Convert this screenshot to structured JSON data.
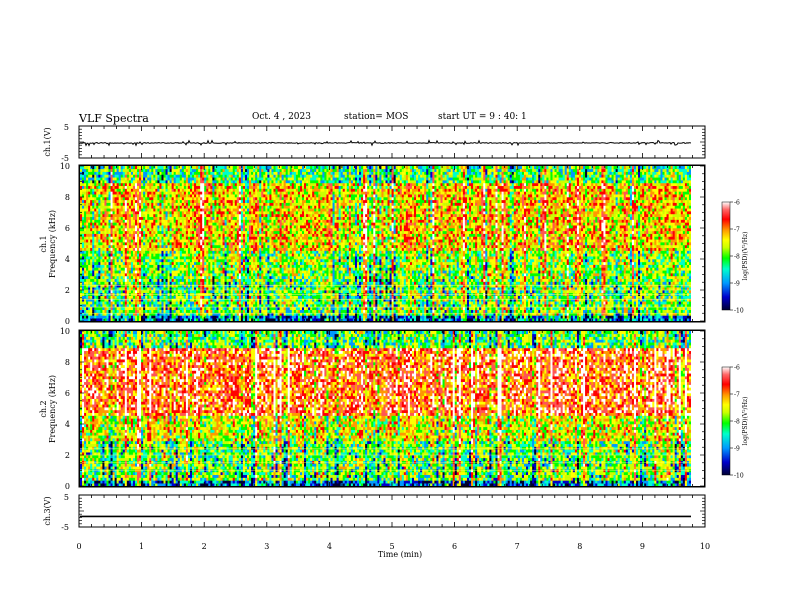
{
  "header": {
    "title": "VLF Spectra",
    "date": "Oct. 4 , 2023",
    "station": "station= MOS",
    "start_ut": "start UT = 9 : 40: 1"
  },
  "chart_data": [
    {
      "id": "ch1-waveform",
      "type": "line",
      "ylabel": "ch.1(V)",
      "ylim": [
        -5,
        5
      ],
      "yticks": [
        "5",
        "-5"
      ],
      "xlim": [
        0,
        10
      ],
      "baseline_value": -0.3,
      "color": "#000000"
    },
    {
      "id": "ch1-spectrogram",
      "type": "heatmap",
      "ylabel": "ch.1\nFrequency (kHz)",
      "ylim": [
        0,
        10
      ],
      "yticks": [
        "0",
        "2",
        "4",
        "6",
        "8",
        "10"
      ],
      "xlim": [
        0,
        9.85
      ],
      "colorbar": {
        "label": "log(PSD)(V²/Hz)",
        "range": [
          -10,
          -6
        ],
        "ticks": [
          "-6",
          "-7",
          "-8",
          "-9",
          "-10"
        ]
      },
      "banded_lines_khz": [
        0.5,
        0.9,
        1.4,
        1.7,
        2.0,
        2.3
      ]
    },
    {
      "id": "ch2-spectrogram",
      "type": "heatmap",
      "ylabel": "ch.2\nFrequency (kHz)",
      "ylim": [
        0,
        10
      ],
      "yticks": [
        "0",
        "2",
        "4",
        "6",
        "8",
        "10"
      ],
      "xlim": [
        0,
        9.85
      ],
      "colorbar": {
        "label": "log(PSD)(V²/Hz)",
        "range": [
          -10,
          -6
        ],
        "ticks": [
          "-6",
          "-7",
          "-8",
          "-9",
          "-10"
        ]
      },
      "banded_lines_khz": [
        1.0,
        1.5,
        2.0,
        2.4
      ]
    },
    {
      "id": "ch3-waveform",
      "type": "line",
      "ylabel": "ch.3(V)",
      "ylim": [
        -5,
        5
      ],
      "yticks": [
        "5",
        "-5"
      ],
      "xlim": [
        0,
        10
      ],
      "baseline_value": -1.7,
      "color": "#000000"
    }
  ],
  "x_axis": {
    "label": "Time (min)",
    "range": [
      0,
      10
    ],
    "ticks": [
      "0",
      "1",
      "2",
      "3",
      "4",
      "5",
      "6",
      "7",
      "8",
      "9",
      "10"
    ]
  },
  "colormap": [
    "#000033",
    "#0000cc",
    "#0099ff",
    "#00ffcc",
    "#00ff00",
    "#ccff00",
    "#ffff00",
    "#ff9900",
    "#ff0000",
    "#ff5555",
    "#ffffff"
  ]
}
